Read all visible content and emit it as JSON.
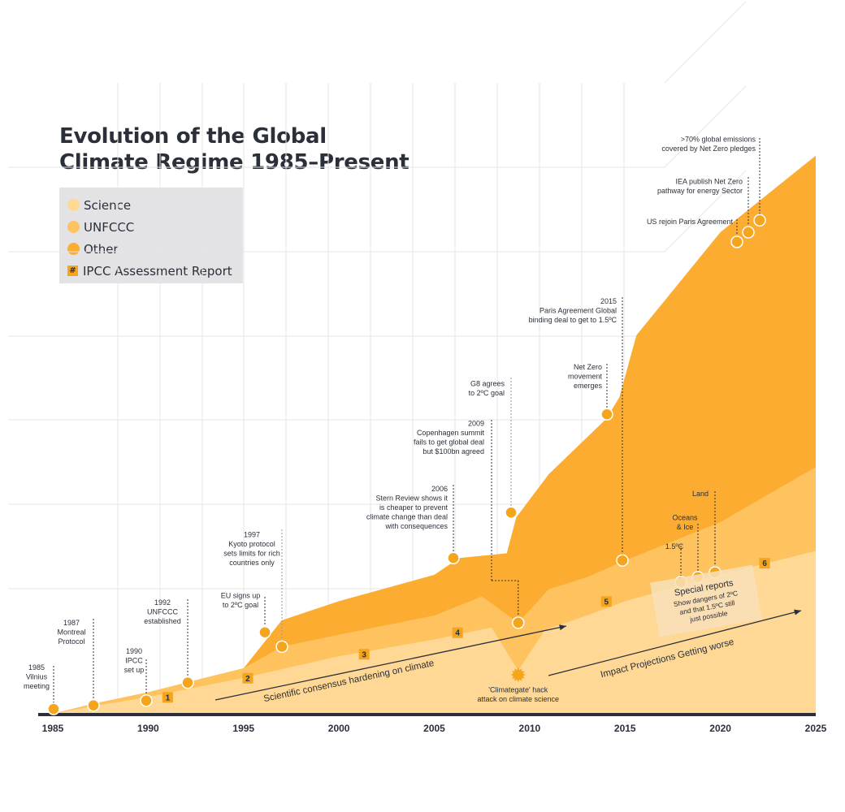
{
  "title_lines": [
    "Evolution of the Global",
    "Climate Regime 1985–Present"
  ],
  "legend": {
    "science": "Science",
    "unfccc": "UNFCCC",
    "other": "Other",
    "ipcc": "IPCC Assessment Report",
    "ipcc_symbol": "#"
  },
  "colors": {
    "science": "#fed894",
    "unfccc": "#fec25e",
    "other": "#fbac31",
    "marker": "#f4a51c",
    "dark": "#2b2f3a",
    "grid": "#e6e6e6"
  },
  "chart_data": {
    "type": "area",
    "xlim": [
      1985,
      2025
    ],
    "x_ticks": [
      "1985",
      "1990",
      "1995",
      "2000",
      "2005",
      "2010",
      "2015",
      "2020",
      "2025"
    ],
    "stacked": true,
    "series": [
      {
        "name": "Science",
        "points": [
          [
            1985,
            0
          ],
          [
            1987,
            0.3
          ],
          [
            1990,
            0.7
          ],
          [
            1995,
            1.5
          ],
          [
            2000,
            2.4
          ],
          [
            2005,
            3.1
          ],
          [
            2008,
            3.6
          ],
          [
            2009.4,
            1.8
          ],
          [
            2010.8,
            3.5
          ],
          [
            2013,
            4.1
          ],
          [
            2015,
            4.7
          ],
          [
            2020,
            5.8
          ],
          [
            2025,
            6.8
          ]
        ]
      },
      {
        "name": "UNFCCC",
        "points": [
          [
            1985,
            0
          ],
          [
            1987,
            0.4
          ],
          [
            1990,
            0.9
          ],
          [
            1992,
            1.3
          ],
          [
            1995,
            1.9
          ],
          [
            1997,
            2.8
          ],
          [
            2000,
            3.3
          ],
          [
            2005,
            4.1
          ],
          [
            2007.5,
            4.9
          ],
          [
            2009.4,
            3.8
          ],
          [
            2011,
            5.2
          ],
          [
            2013,
            5.7
          ],
          [
            2015,
            6.4
          ],
          [
            2020,
            8.0
          ],
          [
            2025,
            10.3
          ]
        ]
      },
      {
        "name": "Other",
        "points": [
          [
            1985,
            0
          ],
          [
            1987,
            0.4
          ],
          [
            1990,
            0.9
          ],
          [
            1992,
            1.3
          ],
          [
            1995,
            1.9
          ],
          [
            1996.3,
            3.2
          ],
          [
            1997,
            3.9
          ],
          [
            2000,
            4.7
          ],
          [
            2005,
            5.8
          ],
          [
            2006.3,
            6.5
          ],
          [
            2008.8,
            6.7
          ],
          [
            2009.3,
            8.2
          ],
          [
            2011,
            10.0
          ],
          [
            2014,
            12.3
          ],
          [
            2014.7,
            13.2
          ],
          [
            2015.6,
            15.8
          ],
          [
            2020,
            20.1
          ],
          [
            2025,
            23.3
          ]
        ]
      }
    ],
    "events": [
      {
        "year": 1985,
        "label": [
          "1985",
          "Vilnius",
          "meeting"
        ]
      },
      {
        "year": 1987.2,
        "label": [
          "1987",
          "Montreal",
          "Protocol"
        ]
      },
      {
        "year": 1990,
        "label": [
          "1990",
          "IPCC",
          "set up"
        ]
      },
      {
        "year": 1992.2,
        "label": [
          "1992",
          "UNFCCC",
          "established"
        ]
      },
      {
        "year": 1996.3,
        "label": [
          "EU signs up",
          "to 2ºC goal"
        ]
      },
      {
        "year": 1997.2,
        "label": [
          "1997",
          "Kyoto protocol",
          "sets limits for rich",
          "countries only"
        ]
      },
      {
        "year": 2006.2,
        "label": [
          "2006",
          "Stern Review shows it",
          "is cheaper to prevent",
          "climate change than deal",
          "with consequences"
        ]
      },
      {
        "year": 2009.4,
        "label": [
          "2009",
          "Copenhagen summit",
          "fails to get global deal",
          "but $100bn agreed"
        ]
      },
      {
        "year": 2009.4,
        "label": [
          "G8 agrees",
          "to 2ºC goal"
        ]
      },
      {
        "year": 2014.4,
        "label": [
          "Net Zero",
          "movement",
          "emerges"
        ]
      },
      {
        "year": 2015.2,
        "label": [
          "2015",
          "Paris Agreement Global",
          "binding deal to get to 1.5ºC"
        ]
      },
      {
        "year": 2018.4,
        "label": [
          "1.5ºC"
        ]
      },
      {
        "year": 2019.3,
        "label": [
          "Oceans",
          "& Ice"
        ]
      },
      {
        "year": 2020.1,
        "label": [
          "Land"
        ]
      },
      {
        "year": 2021.3,
        "label": [
          "US rejoin Paris Agreement"
        ]
      },
      {
        "year": 2021.9,
        "label": [
          "IEA publish Net Zero",
          "pathway for energy Sector"
        ]
      },
      {
        "year": 2022.5,
        "label": [
          ">70% global emissions",
          "covered by Net Zero pledges"
        ]
      }
    ],
    "ipcc_reports": [
      "1",
      "2",
      "3",
      "4",
      "5",
      "6"
    ],
    "climategate": [
      "'Climategate' hack",
      "attack on climate science"
    ],
    "annotations": {
      "consensus": "Scientific consensus hardening on climate",
      "impact": "Impact Projections Getting worse",
      "special_reports": [
        "Special reports",
        "Show dangers of 2ºC",
        "and that 1.5ºC still",
        "just possible"
      ]
    }
  }
}
